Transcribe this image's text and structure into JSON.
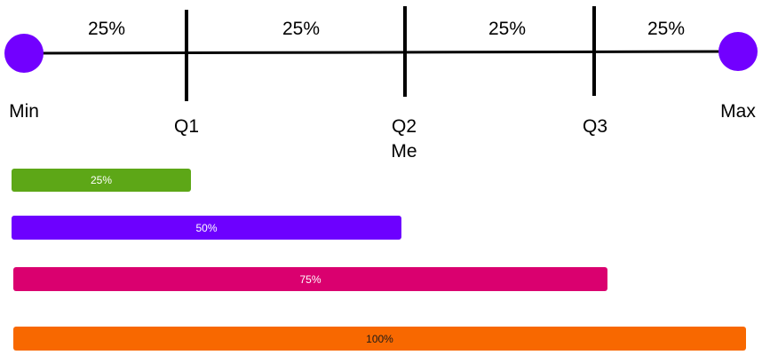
{
  "segments": {
    "seg1": "25%",
    "seg2": "25%",
    "seg3": "25%",
    "seg4": "25%"
  },
  "labels": {
    "min": "Min",
    "q1": "Q1",
    "q2": "Q2",
    "median": "Me",
    "q3": "Q3",
    "max": "Max"
  },
  "colors": {
    "endpoint": "#7200ff",
    "bar_25": "#5da717",
    "bar_50": "#6d00ff",
    "bar_75": "#da006f",
    "bar_100": "#f86800"
  },
  "bars": {
    "bar_25": {
      "label": "25%",
      "value": 25
    },
    "bar_50": {
      "label": "50%",
      "value": 50
    },
    "bar_75": {
      "label": "75%",
      "value": 75
    },
    "bar_100": {
      "label": "100%",
      "value": 100
    }
  }
}
